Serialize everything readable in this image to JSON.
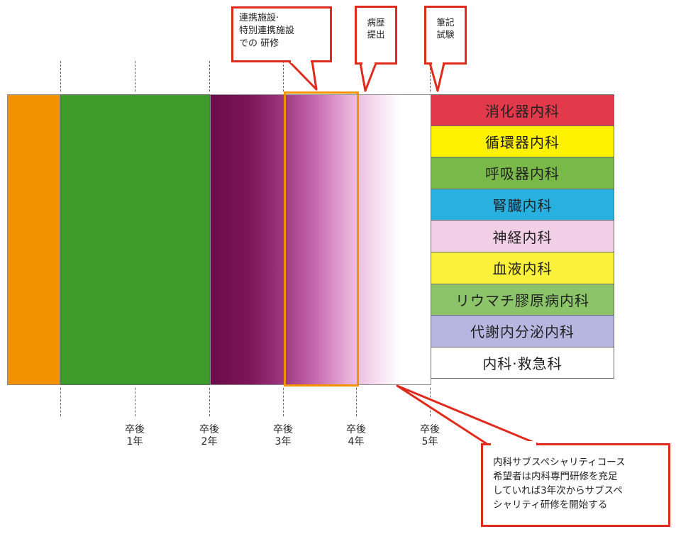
{
  "callouts": {
    "renkei_line1": "連携施設·",
    "renkei_line2": "特別連携施設",
    "renkei_line3": "での 研修",
    "byoreki_line1": "病歴",
    "byoreki_line2": "提出",
    "hikki_line1": "筆記",
    "hikki_line2": "試験",
    "subspecialty_line1": "内科サブスペシャリティコース",
    "subspecialty_line2": "希望者は内科専門研修を充足",
    "subspecialty_line3": "していれば3年次からサブスペ",
    "subspecialty_line4": "シャリティ研修を開始する"
  },
  "legend": [
    {
      "label": "消化器内科",
      "color": "#e23a4a"
    },
    {
      "label": "循環器内科",
      "color": "#fff200"
    },
    {
      "label": "呼吸器内科",
      "color": "#79b94a"
    },
    {
      "label": "腎臓内科",
      "color": "#27b0e0"
    },
    {
      "label": "神経内科",
      "color": "#f2cfe6"
    },
    {
      "label": "血液内科",
      "color": "#fcf13a"
    },
    {
      "label": "リウマチ膠原病内科",
      "color": "#8cc46a"
    },
    {
      "label": "代謝内分泌内科",
      "color": "#b7b6e0"
    },
    {
      "label": "内科·救急科",
      "color": "#ffffff"
    }
  ],
  "years": [
    {
      "top": "卒後",
      "bottom": "1年"
    },
    {
      "top": "卒後",
      "bottom": "2年"
    },
    {
      "top": "卒後",
      "bottom": "3年"
    },
    {
      "top": "卒後",
      "bottom": "4年"
    },
    {
      "top": "卒後",
      "bottom": "5年"
    }
  ],
  "colors": {
    "orange": "#f39200",
    "green": "#3c9b2a",
    "magenta_dark": "#6e0e4b",
    "callout_border": "#e02a1c"
  }
}
